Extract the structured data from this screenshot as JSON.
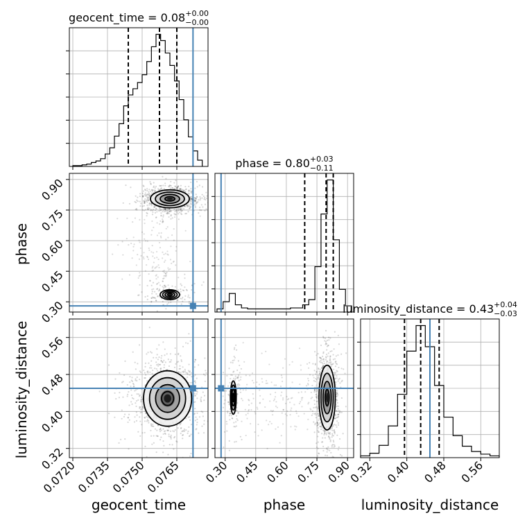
{
  "chart_data": {
    "type": "corner",
    "parameters": [
      "geocent_time",
      "phase",
      "luminosity_distance"
    ],
    "truths": {
      "geocent_time": 0.0772,
      "phase": 0.28,
      "luminosity_distance": 0.45
    },
    "colors": {
      "truth": "#4682b4",
      "hist": "#000000",
      "grid": "#b0b0b0"
    },
    "titles": {
      "geocent_time": {
        "param": "geocent_time",
        "value": "0.08",
        "plus": "+0.00",
        "minus": "−0.00"
      },
      "phase": {
        "param": "phase",
        "value": "0.80",
        "plus": "+0.03",
        "minus": "−0.11"
      },
      "luminosity_distance": {
        "param": "luminosity_distance",
        "value": "0.43",
        "plus": "+0.04",
        "minus": "−0.03"
      }
    },
    "axes": {
      "geocent_time": {
        "range": [
          0.07185,
          0.07785
        ],
        "ticks": [
          0.072,
          0.0735,
          0.075,
          0.0765
        ],
        "tick_labels": [
          "0.0720",
          "0.0735",
          "0.0750",
          "0.0765"
        ],
        "label": "geocent_time"
      },
      "phase": {
        "range": [
          0.25,
          0.93
        ],
        "ticks": [
          0.3,
          0.45,
          0.6,
          0.75,
          0.9
        ],
        "tick_labels": [
          "0.30",
          "0.45",
          "0.60",
          "0.75",
          "0.90"
        ],
        "label": "phase"
      },
      "luminosity_distance": {
        "range": [
          0.3,
          0.6
        ],
        "ticks": [
          0.32,
          0.4,
          0.48,
          0.56
        ],
        "tick_labels": [
          "0.32",
          "0.40",
          "0.48",
          "0.56"
        ],
        "label": "luminosity_distance"
      }
    },
    "histograms": {
      "geocent_time": {
        "bins": [
          0.072,
          0.0722,
          0.0724,
          0.0726,
          0.0728,
          0.073,
          0.0732,
          0.0734,
          0.0736,
          0.0738,
          0.074,
          0.0742,
          0.0744,
          0.0746,
          0.0748,
          0.075,
          0.0752,
          0.0754,
          0.0756,
          0.0758,
          0.076,
          0.0762,
          0.0764,
          0.0766,
          0.0768,
          0.077,
          0.0772,
          0.0774,
          0.0776
        ],
        "counts": [
          1,
          1,
          2,
          3,
          5,
          7,
          10,
          16,
          24,
          39,
          55,
          78,
          92,
          100,
          108,
          118,
          135,
          154,
          170,
          162,
          146,
          130,
          110,
          86,
          60,
          38,
          20,
          8
        ]
      },
      "phase": {
        "bins": [
          0.26,
          0.29,
          0.32,
          0.35,
          0.38,
          0.41,
          0.44,
          0.47,
          0.5,
          0.53,
          0.56,
          0.59,
          0.62,
          0.65,
          0.68,
          0.71,
          0.74,
          0.77,
          0.8,
          0.83,
          0.86,
          0.89,
          0.92
        ],
        "counts": [
          3,
          10,
          18,
          7,
          4,
          3,
          3,
          3,
          3,
          3,
          3,
          3,
          4,
          4,
          7,
          12,
          44,
          95,
          128,
          70,
          22,
          6
        ]
      },
      "luminosity_distance": {
        "bins": [
          0.3,
          0.32,
          0.34,
          0.36,
          0.38,
          0.4,
          0.42,
          0.44,
          0.46,
          0.48,
          0.5,
          0.52,
          0.54,
          0.56,
          0.58,
          0.6
        ],
        "counts": [
          2,
          5,
          14,
          36,
          72,
          121,
          150,
          126,
          82,
          46,
          25,
          13,
          7,
          4,
          2
        ]
      }
    },
    "quantiles": {
      "geocent_time": [
        0.0744,
        0.07575,
        0.0765
      ],
      "phase": [
        0.69,
        0.795,
        0.83
      ],
      "luminosity_distance": [
        0.395,
        0.43,
        0.47
      ]
    },
    "modes": [
      {
        "x": "geocent_time",
        "y": "phase",
        "cx": 0.0762,
        "cy": 0.805,
        "sx": 0.00042,
        "sy": 0.022,
        "weight": 0.88
      },
      {
        "x": "geocent_time",
        "y": "phase",
        "cx": 0.0762,
        "cy": 0.335,
        "sx": 0.00035,
        "sy": 0.02,
        "weight": 0.12
      },
      {
        "x": "geocent_time",
        "y": "luminosity_distance",
        "cx": 0.0761,
        "cy": 0.428,
        "sx": 0.00052,
        "sy": 0.03,
        "weight": 1.0
      },
      {
        "x": "phase",
        "y": "luminosity_distance",
        "cx": 0.8,
        "cy": 0.43,
        "sx": 0.02,
        "sy": 0.035,
        "weight": 0.88
      },
      {
        "x": "phase",
        "y": "luminosity_distance",
        "cx": 0.34,
        "cy": 0.43,
        "sx": 0.012,
        "sy": 0.03,
        "weight": 0.12
      }
    ],
    "contour_levels_sigma": [
      0.5,
      1.0,
      1.5,
      2.0
    ],
    "grid": true
  }
}
